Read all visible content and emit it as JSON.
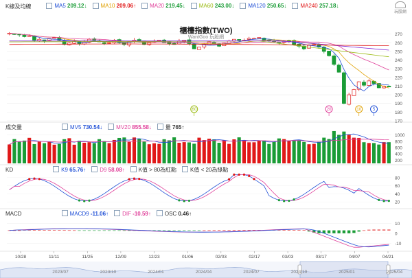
{
  "header": {
    "k_legend": "K線及均線",
    "ma": [
      {
        "label": "MA5",
        "value": "209.12↓",
        "color": "#1f4fd6",
        "dir": "dn"
      },
      {
        "label": "MA10",
        "value": "209.06↑",
        "color": "#e0a000",
        "dir": "up"
      },
      {
        "label": "MA20",
        "value": "219.45↓",
        "color": "#e0409a",
        "dir": "dn"
      },
      {
        "label": "MA60",
        "value": "243.00↓",
        "color": "#9aba10",
        "dir": "dn"
      },
      {
        "label": "MA120",
        "value": "250.65↓",
        "color": "#1f4fd6",
        "dir": "dn"
      },
      {
        "label": "MA240",
        "value": "257.18↓",
        "color": "#e01818",
        "dir": "dn"
      }
    ],
    "logo_text": "玩股網"
  },
  "main_chart": {
    "title": "櫃檯指數(TWO)",
    "subtitle": "WantGoo 玩股網",
    "y_ticks": [
      270,
      260,
      250,
      240,
      230,
      220,
      210,
      200,
      190,
      180,
      170
    ],
    "markers": [
      {
        "label": "60",
        "color": "#9aba10",
        "idx": 37
      },
      {
        "label": "20",
        "color": "#e0409a",
        "idx": 64
      },
      {
        "label": "10",
        "color": "#e0a000",
        "idx": 70
      },
      {
        "label": "5",
        "color": "#1f4fd6",
        "idx": 73
      }
    ]
  },
  "volume_panel": {
    "legend": "成交量",
    "mv5": {
      "label": "MV5",
      "value": "730.54↓"
    },
    "mv20": {
      "label": "MV20",
      "value": "855.58↓"
    },
    "vol": {
      "label": "量",
      "value": "765↑"
    },
    "y_ticks": [
      "1000",
      "800",
      "600",
      "400",
      "200"
    ]
  },
  "kd_panel": {
    "legend": "KD",
    "k9": {
      "label": "K9",
      "value": "65.76↑"
    },
    "d9": {
      "label": "D9",
      "value": "58.08↑"
    },
    "note1": "K值 > 80為紅點",
    "note2": "K值 < 20為綠點",
    "y_ticks": [
      "80",
      "60",
      "40",
      "20"
    ]
  },
  "macd_panel": {
    "legend": "MACD",
    "macd9": {
      "label": "MACD9",
      "value": "-11.06↑"
    },
    "dif": {
      "label": "DIF",
      "value": "-10.59↑"
    },
    "osc": {
      "label": "OSC",
      "value": "0.46↑"
    },
    "y_ticks": [
      "10",
      "0",
      "-10"
    ]
  },
  "date_axis": [
    "10/28",
    "11/11",
    "11/25",
    "12/09",
    "12/23",
    "01/06",
    "02/03",
    "02/17",
    "03/03",
    "03/17",
    "04/07",
    "04/21"
  ],
  "navigator_labels": [
    "2023/07",
    "2023/10",
    "2024/01",
    "2024/04",
    "2024/07",
    "2024/10",
    "2025/01",
    "2025/04"
  ],
  "chart_data": {
    "type": "candlestick",
    "title": "櫃檯指數(TWO)",
    "closes": [
      271,
      270,
      269,
      267,
      268,
      263,
      264,
      262,
      265,
      266,
      263,
      258,
      260,
      262,
      259,
      261,
      264,
      263,
      261,
      259,
      260,
      263,
      260,
      258,
      261,
      263,
      262,
      258,
      260,
      262,
      263,
      260,
      259,
      258,
      262,
      263,
      259,
      253,
      255,
      258,
      261,
      259,
      256,
      260,
      262,
      264,
      263,
      263,
      265,
      265,
      266,
      263,
      262,
      261,
      260,
      262,
      262,
      258,
      256,
      253,
      257,
      258,
      255,
      250,
      245,
      235,
      226,
      190,
      200,
      206,
      215,
      211,
      216,
      213,
      208,
      210,
      209
    ],
    "ma240": [
      257.18
    ],
    "y_range": [
      170,
      280
    ],
    "volume_range": [
      0,
      1200
    ],
    "kd_range": [
      0,
      100
    ],
    "macd_range": [
      -15,
      10
    ]
  }
}
